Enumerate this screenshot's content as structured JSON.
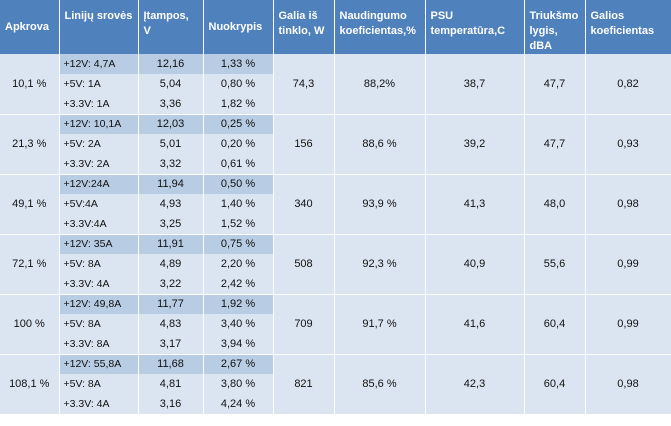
{
  "headers": {
    "load": "Apkrova",
    "lines": "Linijų srovės",
    "voltage": "Įtampos, V",
    "deviation": "Nuokrypis",
    "wall_power": "Galia iš tinklo, W",
    "efficiency": "Naudingumo koeficientas,%",
    "psu_temp": "PSU temperatūra,C",
    "noise": "Triukšmo lygis, dBA",
    "power_factor": "Galios koeficientas"
  },
  "rows": [
    {
      "load": "10,1 %",
      "wall_power": "74,3",
      "efficiency": "88,2%",
      "psu_temp": "38,7",
      "noise": "47,7",
      "power_factor": "0,82",
      "lines": [
        {
          "line": "+12V: 4,7A",
          "voltage": "12,16",
          "deviation": "1,33 %"
        },
        {
          "line": "+5V: 1A",
          "voltage": "5,04",
          "deviation": "0,80 %"
        },
        {
          "line": "+3.3V: 1A",
          "voltage": "3,36",
          "deviation": "1,82 %"
        }
      ]
    },
    {
      "load": "21,3 %",
      "wall_power": "156",
      "efficiency": "88,6 %",
      "psu_temp": "39,2",
      "noise": "47,7",
      "power_factor": "0,93",
      "lines": [
        {
          "line": "+12V: 10,1A",
          "voltage": "12,03",
          "deviation": "0,25 %"
        },
        {
          "line": "+5V: 2A",
          "voltage": "5,01",
          "deviation": "0,20 %"
        },
        {
          "line": "+3.3V: 2A",
          "voltage": "3,32",
          "deviation": "0,61 %"
        }
      ]
    },
    {
      "load": "49,1 %",
      "wall_power": "340",
      "efficiency": "93,9 %",
      "psu_temp": "41,3",
      "noise": "48,0",
      "power_factor": "0,98",
      "lines": [
        {
          "line": "+12V:24A",
          "voltage": "11,94",
          "deviation": "0,50 %"
        },
        {
          "line": "+5V:4A",
          "voltage": "4,93",
          "deviation": "1,40 %"
        },
        {
          "line": "+3.3V:4A",
          "voltage": "3,25",
          "deviation": "1,52 %"
        }
      ]
    },
    {
      "load": "72,1 %",
      "wall_power": "508",
      "efficiency": "92,3 %",
      "psu_temp": "40,9",
      "noise": "55,6",
      "power_factor": "0,99",
      "lines": [
        {
          "line": "+12V: 35A",
          "voltage": "11,91",
          "deviation": "0,75 %"
        },
        {
          "line": "+5V: 8A",
          "voltage": "4,89",
          "deviation": "2,20 %"
        },
        {
          "line": "+3.3V: 4A",
          "voltage": "3,22",
          "deviation": "2,42 %"
        }
      ]
    },
    {
      "load": "100 %",
      "wall_power": "709",
      "efficiency": "91,7 %",
      "psu_temp": "41,6",
      "noise": "60,4",
      "power_factor": "0,99",
      "lines": [
        {
          "line": "+12V: 49,8A",
          "voltage": "11,77",
          "deviation": "1,92 %"
        },
        {
          "line": "+5V: 8A",
          "voltage": "4,83",
          "deviation": "3,40 %"
        },
        {
          "line": "+3.3V: 8A",
          "voltage": "3,17",
          "deviation": "3,94 %"
        }
      ]
    },
    {
      "load": "108,1 %",
      "wall_power": "821",
      "efficiency": "85,6 %",
      "psu_temp": "42,3",
      "noise": "60,4",
      "power_factor": "0,98",
      "lines": [
        {
          "line": "+12V: 55,8A",
          "voltage": "11,68",
          "deviation": "2,67 %"
        },
        {
          "line": "+5V: 8A",
          "voltage": "4,81",
          "deviation": "3,80 %"
        },
        {
          "line": "+3.3V: 4A",
          "voltage": "3,16",
          "deviation": "4,24 %"
        }
      ]
    }
  ]
}
